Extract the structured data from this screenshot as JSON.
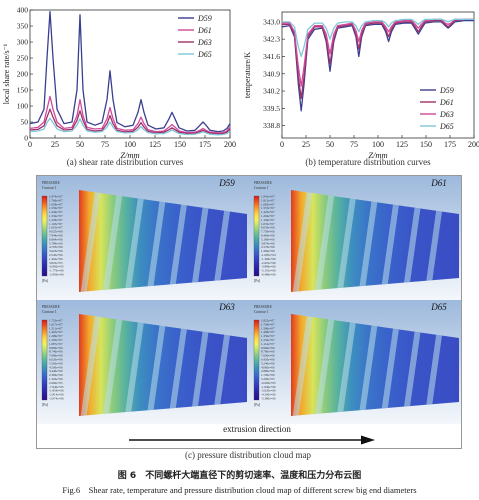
{
  "figure": {
    "caption_cn": "图 6　不同螺杆大端直径下的剪切速率、温度和压力分布云图",
    "caption_en": "Fig.6　Shear rate, temperature and pressure distribution cloud map of different screw big end diameters"
  },
  "panel_a": {
    "caption": "(a) shear rate distribution curves",
    "chart_data": {
      "type": "line",
      "xlabel": "Z/mm",
      "ylabel": "local share rate/s⁻¹",
      "xlim": [
        0,
        200
      ],
      "ylim": [
        0,
        400
      ],
      "xticks": [
        0,
        25,
        50,
        75,
        100,
        125,
        150,
        175,
        200
      ],
      "yticks": [
        0,
        50,
        100,
        150,
        200,
        250,
        300,
        350,
        400
      ],
      "x": [
        0,
        8,
        14,
        17,
        20,
        23,
        27,
        34,
        42,
        47,
        50,
        53,
        57,
        65,
        72,
        77,
        80,
        83,
        87,
        95,
        103,
        108,
        111,
        114,
        118,
        126,
        134,
        139,
        142,
        145,
        149,
        157,
        165,
        170,
        173,
        176,
        180,
        188,
        193,
        197,
        200
      ],
      "series": [
        {
          "name": "D59",
          "color": "#3a3f8f",
          "values": [
            45,
            50,
            90,
            250,
            395,
            250,
            90,
            45,
            50,
            150,
            385,
            150,
            50,
            40,
            48,
            120,
            210,
            120,
            48,
            35,
            40,
            80,
            120,
            80,
            40,
            28,
            32,
            60,
            80,
            60,
            32,
            22,
            24,
            40,
            50,
            40,
            24,
            20,
            22,
            30,
            45
          ]
        },
        {
          "name": "D61",
          "color": "#d04a9a",
          "values": [
            30,
            33,
            50,
            90,
            130,
            90,
            50,
            30,
            33,
            70,
            120,
            70,
            33,
            28,
            30,
            60,
            95,
            60,
            30,
            24,
            26,
            45,
            65,
            45,
            26,
            20,
            22,
            34,
            42,
            34,
            22,
            17,
            18,
            24,
            30,
            24,
            18,
            16,
            17,
            22,
            35
          ]
        },
        {
          "name": "D63",
          "color": "#a0306a",
          "values": [
            25,
            27,
            38,
            65,
            90,
            65,
            38,
            25,
            27,
            55,
            85,
            55,
            27,
            22,
            24,
            45,
            70,
            45,
            24,
            19,
            21,
            34,
            48,
            34,
            21,
            16,
            18,
            26,
            32,
            26,
            18,
            14,
            15,
            20,
            24,
            20,
            15,
            13,
            14,
            18,
            28
          ]
        },
        {
          "name": "D65",
          "color": "#7ec8d8",
          "values": [
            20,
            22,
            28,
            48,
            62,
            48,
            28,
            20,
            22,
            40,
            60,
            40,
            22,
            18,
            20,
            34,
            50,
            34,
            20,
            16,
            17,
            26,
            36,
            26,
            17,
            13,
            14,
            20,
            25,
            20,
            14,
            11,
            12,
            16,
            19,
            16,
            12,
            10,
            11,
            14,
            22
          ]
        }
      ],
      "legend": "top-right"
    }
  },
  "panel_b": {
    "caption": "(b) temperature distribution curves",
    "chart_data": {
      "type": "line",
      "xlabel": "Z/mm",
      "ylabel": "temperature/K",
      "xlim": [
        0,
        200
      ],
      "ylim": [
        338.3,
        343.4
      ],
      "xticks": [
        0,
        25,
        50,
        75,
        100,
        125,
        150,
        175,
        200
      ],
      "yticks": [
        338.8,
        339.5,
        340.2,
        340.9,
        341.6,
        342.3,
        343.0
      ],
      "ytick_labels": [
        "338.8",
        "339.5",
        "340.2",
        "340.9",
        "341.6",
        "342.3",
        "343.0"
      ],
      "x": [
        0,
        8,
        13,
        17,
        20,
        23,
        27,
        34,
        42,
        46,
        50,
        54,
        58,
        66,
        73,
        77,
        80,
        83,
        87,
        96,
        104,
        108,
        111,
        114,
        118,
        127,
        135,
        139,
        142,
        145,
        149,
        158,
        166,
        170,
        173,
        176,
        180,
        190,
        200
      ],
      "series": [
        {
          "name": "D59",
          "color": "#3a3f8f",
          "values": [
            342.8,
            342.85,
            342.4,
            340.5,
            339.4,
            340.5,
            342.3,
            342.7,
            342.75,
            342.2,
            341.0,
            342.2,
            342.75,
            342.8,
            342.85,
            342.4,
            341.6,
            342.4,
            342.85,
            342.9,
            342.9,
            342.6,
            342.2,
            342.6,
            342.9,
            342.95,
            342.95,
            342.7,
            342.5,
            342.7,
            342.95,
            343.0,
            343.0,
            342.85,
            342.75,
            342.85,
            343.0,
            343.05,
            343.05
          ]
        },
        {
          "name": "D61",
          "color": "#a0306a",
          "values": [
            342.9,
            342.9,
            342.5,
            340.8,
            339.9,
            340.8,
            342.4,
            342.8,
            342.8,
            342.3,
            341.3,
            342.3,
            342.8,
            342.85,
            342.9,
            342.5,
            341.9,
            342.5,
            342.9,
            342.95,
            342.95,
            342.7,
            342.4,
            342.7,
            342.95,
            343.0,
            343.0,
            342.8,
            342.6,
            342.8,
            343.0,
            343.05,
            343.05,
            342.9,
            342.8,
            342.9,
            343.05,
            343.1,
            343.1
          ]
        },
        {
          "name": "D63",
          "color": "#d04a9a",
          "values": [
            342.95,
            342.95,
            342.6,
            341.2,
            340.4,
            341.2,
            342.5,
            342.85,
            342.85,
            342.5,
            341.7,
            342.5,
            342.85,
            342.9,
            342.95,
            342.65,
            342.2,
            342.65,
            342.95,
            343.0,
            343.0,
            342.8,
            342.6,
            342.8,
            343.0,
            343.05,
            343.05,
            342.9,
            342.75,
            342.9,
            343.05,
            343.1,
            343.1,
            342.95,
            342.9,
            342.95,
            343.1,
            343.1,
            343.1
          ]
        },
        {
          "name": "D65",
          "color": "#7ec8d8",
          "values": [
            343.0,
            343.0,
            342.8,
            342.0,
            341.6,
            342.0,
            342.7,
            342.95,
            342.95,
            342.75,
            342.3,
            342.75,
            342.95,
            343.0,
            343.0,
            342.85,
            342.6,
            342.85,
            343.0,
            343.05,
            343.05,
            342.95,
            342.8,
            342.95,
            343.05,
            343.1,
            343.1,
            343.0,
            342.9,
            343.0,
            343.1,
            343.1,
            343.1,
            343.05,
            343.0,
            343.05,
            343.1,
            343.1,
            343.1
          ]
        }
      ],
      "legend": "bottom-right"
    }
  },
  "panel_c": {
    "caption": "(c) pressure distribution cloud map",
    "arrow_label": "extrusion direction",
    "legend_header": [
      "PRESSURE",
      "Contour 1"
    ],
    "legend_footer": "[Pa]",
    "maps": [
      {
        "label": "D59",
        "legend_values": [
          "1.874e+07",
          "1.766e+07",
          "1.658e+07",
          "1.550e+07",
          "1.442e+07",
          "1.334e+07",
          "1.226e+07",
          "1.118e+07",
          "1.010e+07",
          "9.025e+06",
          "7.944e+06",
          "6.864e+06",
          "5.784e+06",
          "4.703e+06",
          "3.623e+06",
          "2.543e+06",
          "1.462e+06",
          "3.822e+05",
          "-6.982e+05",
          "-1.779e+06",
          "-2.859e+06"
        ]
      },
      {
        "label": "D61",
        "legend_values": [
          "1.941e+07",
          "1.812e+07",
          "1.682e+07",
          "1.553e+07",
          "1.423e+07",
          "1.294e+07",
          "1.164e+07",
          "1.035e+07",
          "9.054e+06",
          "7.759e+06",
          "6.464e+06",
          "5.169e+06",
          "3.874e+06",
          "2.579e+06",
          "1.284e+06",
          "-1.095e+04",
          "-1.306e+06",
          "-2.601e+06",
          "-3.896e+06",
          "-5.191e+06",
          "-6.486e+06"
        ]
      },
      {
        "label": "D63",
        "legend_values": [
          "1.723e+07",
          "1.617e+07",
          "1.511e+07",
          "1.405e+07",
          "1.299e+07",
          "1.193e+07",
          "1.087e+07",
          "9.806e+06",
          "8.746e+06",
          "7.686e+06",
          "6.626e+06",
          "5.566e+06",
          "4.506e+06",
          "3.446e+06",
          "2.386e+06",
          "1.326e+06",
          "2.660e+05",
          "-7.940e+05",
          "-1.854e+06",
          "-2.914e+06",
          "-3.974e+06"
        ]
      },
      {
        "label": "D65",
        "legend_values": [
          "1.822e+07",
          "1.704e+07",
          "1.586e+07",
          "1.468e+07",
          "1.350e+07",
          "1.232e+07",
          "1.114e+07",
          "9.960e+06",
          "8.780e+06",
          "7.600e+06",
          "6.420e+06",
          "5.240e+06",
          "4.060e+06",
          "2.880e+06",
          "1.700e+06",
          "5.200e+05",
          "-6.600e+05",
          "-1.840e+06",
          "-3.020e+06",
          "-4.200e+06",
          "-5.380e+06"
        ]
      }
    ]
  }
}
